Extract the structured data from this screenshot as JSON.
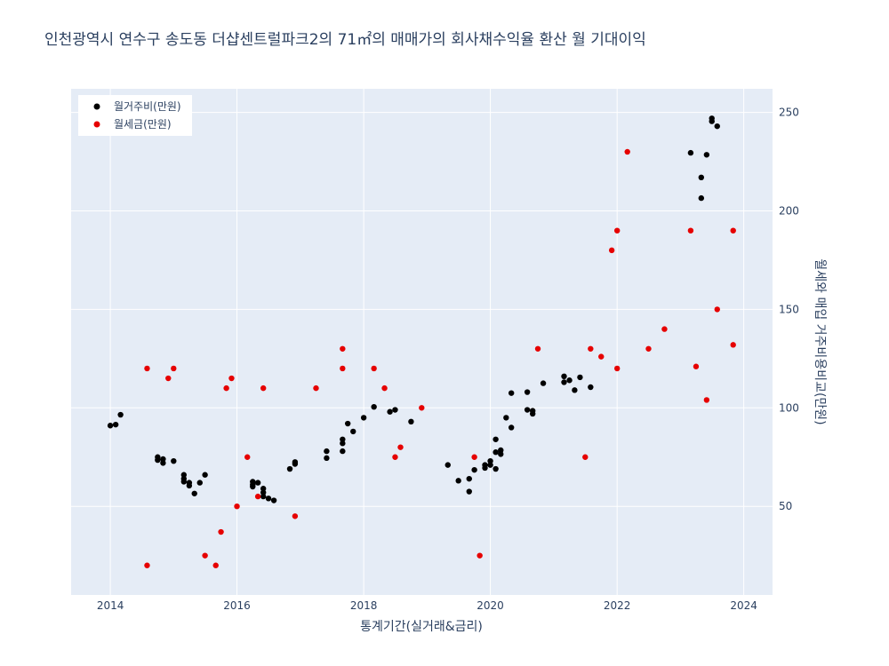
{
  "chart_data": {
    "type": "scatter",
    "title": "인천광역시 연수구 송도동 더샵센트럴파크2의 71㎡의 매매가의 회사채수익율 환산 월 기대이익",
    "xlabel": "통계기간(실거래&금리)",
    "ylabel": "월세와 매입 거주비용비교(만원)",
    "xlim": [
      "2013-05-20",
      "2024-06-15"
    ],
    "ylim": [
      5,
      262
    ],
    "x_ticks": [
      "2014-01-01",
      "2016-01-01",
      "2018-01-01",
      "2020-01-01",
      "2022-01-01",
      "2024-01-01"
    ],
    "x_tick_labels": [
      "2014",
      "2016",
      "2018",
      "2020",
      "2022",
      "2024"
    ],
    "y_ticks": [
      50,
      100,
      150,
      200,
      250
    ],
    "y_tick_labels": [
      "50",
      "100",
      "150",
      "200",
      "250"
    ],
    "grid": true,
    "y_axis_side": "right",
    "legend_placement": "top-left",
    "series": [
      {
        "name": "월거주비(만원)",
        "color": "#000000",
        "points": [
          [
            "2014-01-01",
            91
          ],
          [
            "2014-02-01",
            91.5
          ],
          [
            "2014-03-01",
            96.5
          ],
          [
            "2014-10-01",
            75
          ],
          [
            "2014-10-01",
            73.5
          ],
          [
            "2014-11-01",
            74
          ],
          [
            "2014-11-01",
            72
          ],
          [
            "2015-01-01",
            73
          ],
          [
            "2015-03-01",
            66
          ],
          [
            "2015-03-01",
            64
          ],
          [
            "2015-03-01",
            62.5
          ],
          [
            "2015-04-01",
            62
          ],
          [
            "2015-04-01",
            60.5
          ],
          [
            "2015-05-01",
            56.5
          ],
          [
            "2015-06-01",
            62
          ],
          [
            "2015-07-01",
            66
          ],
          [
            "2016-04-01",
            62.5
          ],
          [
            "2016-04-01",
            61
          ],
          [
            "2016-04-01",
            60
          ],
          [
            "2016-05-01",
            62
          ],
          [
            "2016-06-01",
            59
          ],
          [
            "2016-06-01",
            57
          ],
          [
            "2016-06-01",
            55
          ],
          [
            "2016-07-01",
            54
          ],
          [
            "2016-08-01",
            53
          ],
          [
            "2016-11-01",
            69
          ],
          [
            "2016-12-01",
            72.5
          ],
          [
            "2016-12-01",
            71.5
          ],
          [
            "2017-06-01",
            78
          ],
          [
            "2017-06-01",
            74.5
          ],
          [
            "2017-09-01",
            84
          ],
          [
            "2017-09-01",
            82
          ],
          [
            "2017-09-01",
            78
          ],
          [
            "2017-10-01",
            92
          ],
          [
            "2017-11-01",
            88
          ],
          [
            "2018-01-01",
            95
          ],
          [
            "2018-03-01",
            100.5
          ],
          [
            "2018-06-01",
            98
          ],
          [
            "2018-07-01",
            99
          ],
          [
            "2018-10-01",
            93
          ],
          [
            "2019-05-01",
            71
          ],
          [
            "2019-07-01",
            63
          ],
          [
            "2019-09-01",
            64
          ],
          [
            "2019-09-01",
            57.5
          ],
          [
            "2019-10-01",
            68.5
          ],
          [
            "2019-12-01",
            71
          ],
          [
            "2019-12-01",
            69.5
          ],
          [
            "2020-01-01",
            73
          ],
          [
            "2020-01-01",
            71
          ],
          [
            "2020-02-01",
            69
          ],
          [
            "2020-02-01",
            77.5
          ],
          [
            "2020-02-01",
            84
          ],
          [
            "2020-03-01",
            78.5
          ],
          [
            "2020-03-01",
            76.5
          ],
          [
            "2020-04-01",
            95
          ],
          [
            "2020-05-01",
            90
          ],
          [
            "2020-05-01",
            107.5
          ],
          [
            "2020-08-01",
            108
          ],
          [
            "2020-08-01",
            99
          ],
          [
            "2020-09-01",
            97
          ],
          [
            "2020-09-01",
            98.5
          ],
          [
            "2020-11-01",
            112.5
          ],
          [
            "2021-03-01",
            116
          ],
          [
            "2021-03-01",
            113
          ],
          [
            "2021-04-01",
            114
          ],
          [
            "2021-05-01",
            109
          ],
          [
            "2021-06-01",
            115.5
          ],
          [
            "2021-08-01",
            110.5
          ],
          [
            "2023-03-01",
            229.5
          ],
          [
            "2023-05-01",
            217
          ],
          [
            "2023-05-01",
            206.5
          ],
          [
            "2023-06-01",
            228.5
          ],
          [
            "2023-07-01",
            247
          ],
          [
            "2023-07-01",
            245.5
          ],
          [
            "2023-08-01",
            243
          ]
        ]
      },
      {
        "name": "월세금(만원)",
        "color": "#e60000",
        "points": [
          [
            "2014-08-01",
            120
          ],
          [
            "2014-08-01",
            20
          ],
          [
            "2014-12-01",
            115
          ],
          [
            "2015-01-01",
            120
          ],
          [
            "2015-07-01",
            25
          ],
          [
            "2015-09-01",
            20
          ],
          [
            "2015-10-01",
            37
          ],
          [
            "2015-11-01",
            110
          ],
          [
            "2015-12-01",
            115
          ],
          [
            "2016-01-01",
            50
          ],
          [
            "2016-03-01",
            75
          ],
          [
            "2016-05-01",
            55
          ],
          [
            "2016-06-01",
            110
          ],
          [
            "2016-12-01",
            45
          ],
          [
            "2017-04-01",
            110
          ],
          [
            "2017-09-01",
            130
          ],
          [
            "2017-09-01",
            120
          ],
          [
            "2018-03-01",
            120
          ],
          [
            "2018-05-01",
            110
          ],
          [
            "2018-07-01",
            75
          ],
          [
            "2018-08-01",
            80
          ],
          [
            "2018-12-01",
            100
          ],
          [
            "2019-10-01",
            75
          ],
          [
            "2019-11-01",
            25
          ],
          [
            "2020-10-01",
            130
          ],
          [
            "2021-07-01",
            75
          ],
          [
            "2021-08-01",
            130
          ],
          [
            "2021-10-01",
            126
          ],
          [
            "2021-12-01",
            180
          ],
          [
            "2022-01-01",
            190
          ],
          [
            "2022-01-01",
            120
          ],
          [
            "2022-03-01",
            230
          ],
          [
            "2022-07-01",
            130
          ],
          [
            "2022-10-01",
            140
          ],
          [
            "2023-03-01",
            190
          ],
          [
            "2023-04-01",
            121
          ],
          [
            "2023-06-01",
            104
          ],
          [
            "2023-08-01",
            150
          ],
          [
            "2023-11-01",
            190
          ],
          [
            "2023-11-01",
            132
          ]
        ]
      }
    ]
  }
}
